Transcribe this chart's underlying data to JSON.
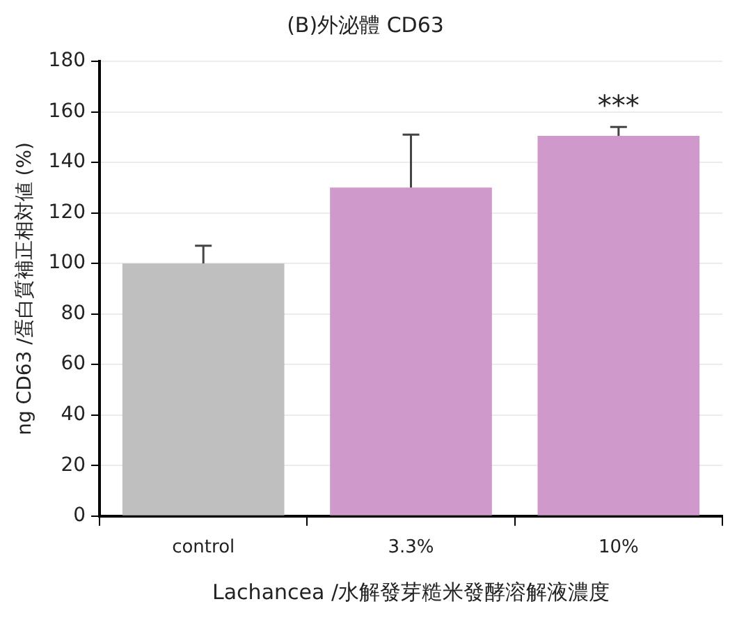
{
  "chart_data": {
    "type": "bar",
    "title": "(B)外泌體 CD63",
    "xlabel": "Lachancea /水解發芽糙米發酵溶解液濃度",
    "ylabel": "ng CD63 /蛋白質補正相対値 (%)",
    "categories": [
      "control",
      "3.3%",
      "10%"
    ],
    "values": [
      100,
      130,
      150.5
    ],
    "colors": [
      "#bfbfbf",
      "#cf99cb",
      "#cf99cb"
    ],
    "errors": [
      [
        100,
        107
      ],
      [
        130,
        151
      ],
      [
        150.5,
        154
      ]
    ],
    "annotations": [
      {
        "text": "***",
        "x": "10%",
        "y": 154
      }
    ],
    "ylim": [
      0,
      180
    ],
    "yticks": [
      0,
      20,
      40,
      60,
      80,
      100,
      120,
      140,
      160,
      180
    ],
    "grid": "y"
  }
}
